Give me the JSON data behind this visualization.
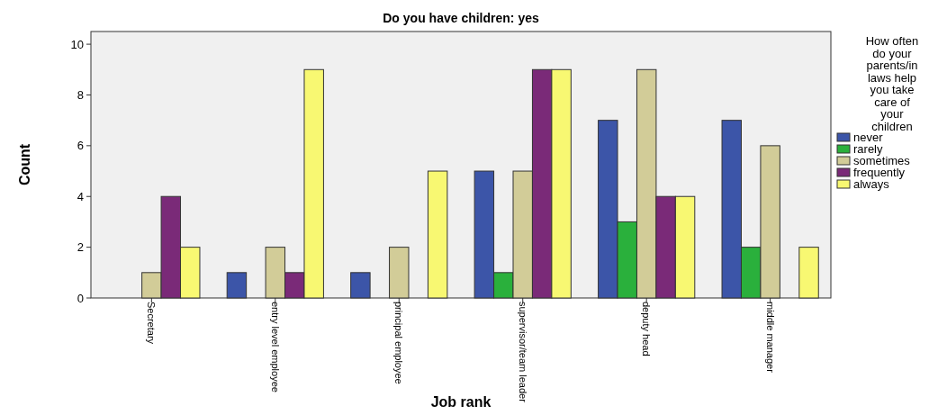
{
  "chart_data": {
    "type": "bar",
    "title": "Do you have children: yes",
    "xlabel": "Job rank",
    "ylabel": "Count",
    "legend_title": "How often do your parents/in laws help you take care of your children",
    "legend": "right",
    "grid": false,
    "categories": [
      "Secretary",
      "entry level employee",
      "principal employee",
      "supervisor/team leader",
      "deputy head",
      "middle manager"
    ],
    "ylim": [
      0,
      10.5
    ],
    "yticks": [
      0,
      2,
      4,
      6,
      8,
      10
    ],
    "series": [
      {
        "name": "never",
        "color": "#3c55a8",
        "values": [
          0,
          1,
          1,
          5,
          7,
          7
        ]
      },
      {
        "name": "rarely",
        "color": "#2ab03c",
        "values": [
          0,
          0,
          0,
          1,
          3,
          2
        ]
      },
      {
        "name": "sometimes",
        "color": "#d2cc98",
        "values": [
          1,
          2,
          2,
          5,
          9,
          6
        ]
      },
      {
        "name": "frequently",
        "color": "#7a2a78",
        "values": [
          4,
          1,
          0,
          9,
          4,
          0
        ]
      },
      {
        "name": "always",
        "color": "#f8f872",
        "values": [
          2,
          9,
          5,
          9,
          4,
          2
        ]
      }
    ]
  }
}
